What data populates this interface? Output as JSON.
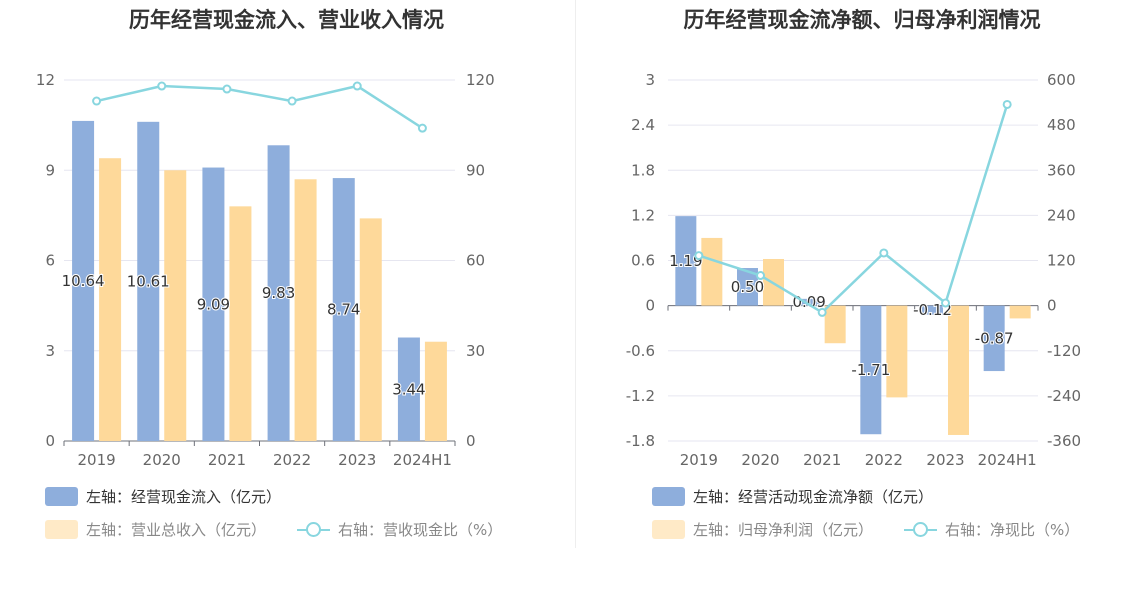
{
  "colors": {
    "bar_a": "#8eaedc",
    "bar_b": "#fed99a",
    "line": "#88d6df",
    "grid": "#e6e6f0",
    "axis_text": "#666666"
  },
  "chart_data": [
    {
      "type": "bar",
      "title": "历年经营现金流入、营业收入情况",
      "categories": [
        "2019",
        "2020",
        "2021",
        "2022",
        "2023",
        "2024H1"
      ],
      "series": [
        {
          "name": "左轴：经营现金流入（亿元）",
          "axis": "left",
          "values": [
            10.64,
            10.61,
            9.09,
            9.83,
            8.74,
            3.44
          ],
          "labels": [
            "10.64",
            "10.61",
            "9.09",
            "9.83",
            "8.74",
            "3.44"
          ]
        },
        {
          "name": "左轴：营业总收入（亿元）",
          "axis": "left",
          "values": [
            9.4,
            9.0,
            7.8,
            8.7,
            7.4,
            3.3
          ]
        },
        {
          "name": "右轴：营收现金比（%）",
          "axis": "right",
          "type": "line",
          "values": [
            113,
            118,
            117,
            113,
            118,
            104
          ]
        }
      ],
      "y_left": {
        "ylim": [
          0,
          12
        ],
        "ticks": [
          "0",
          "3",
          "6",
          "9",
          "12"
        ]
      },
      "y_right": {
        "ylim": [
          0,
          120
        ],
        "ticks": [
          "0",
          "30",
          "60",
          "90",
          "120"
        ]
      },
      "legend": "bottom-left"
    },
    {
      "type": "bar",
      "title": "历年经营现金流净额、归母净利润情况",
      "categories": [
        "2019",
        "2020",
        "2021",
        "2022",
        "2023",
        "2024H1"
      ],
      "series": [
        {
          "name": "左轴：经营活动现金流净额（亿元）",
          "axis": "left",
          "values": [
            1.19,
            0.5,
            0.09,
            -1.71,
            -0.12,
            -0.87
          ],
          "labels": [
            "1.19",
            "0.50",
            "0.09",
            "-1.71",
            "-0.12",
            "-0.87"
          ]
        },
        {
          "name": "左轴：归母净利润（亿元）",
          "axis": "left",
          "values": [
            0.9,
            0.62,
            -0.5,
            -1.22,
            -1.72,
            -0.17
          ]
        },
        {
          "name": "右轴：净现比（%）",
          "axis": "right",
          "type": "line",
          "values": [
            133,
            80,
            -18,
            140,
            7,
            535
          ]
        }
      ],
      "y_left": {
        "ylim": [
          -1.8,
          3
        ],
        "ticks": [
          "-1.8",
          "-1.2",
          "-0.6",
          "0",
          "0.6",
          "1.2",
          "1.8",
          "2.4",
          "3"
        ]
      },
      "y_right": {
        "ylim": [
          -360,
          600
        ],
        "ticks": [
          "-360",
          "-240",
          "-120",
          "0",
          "120",
          "240",
          "360",
          "480",
          "600"
        ]
      },
      "legend": "bottom-left"
    }
  ]
}
